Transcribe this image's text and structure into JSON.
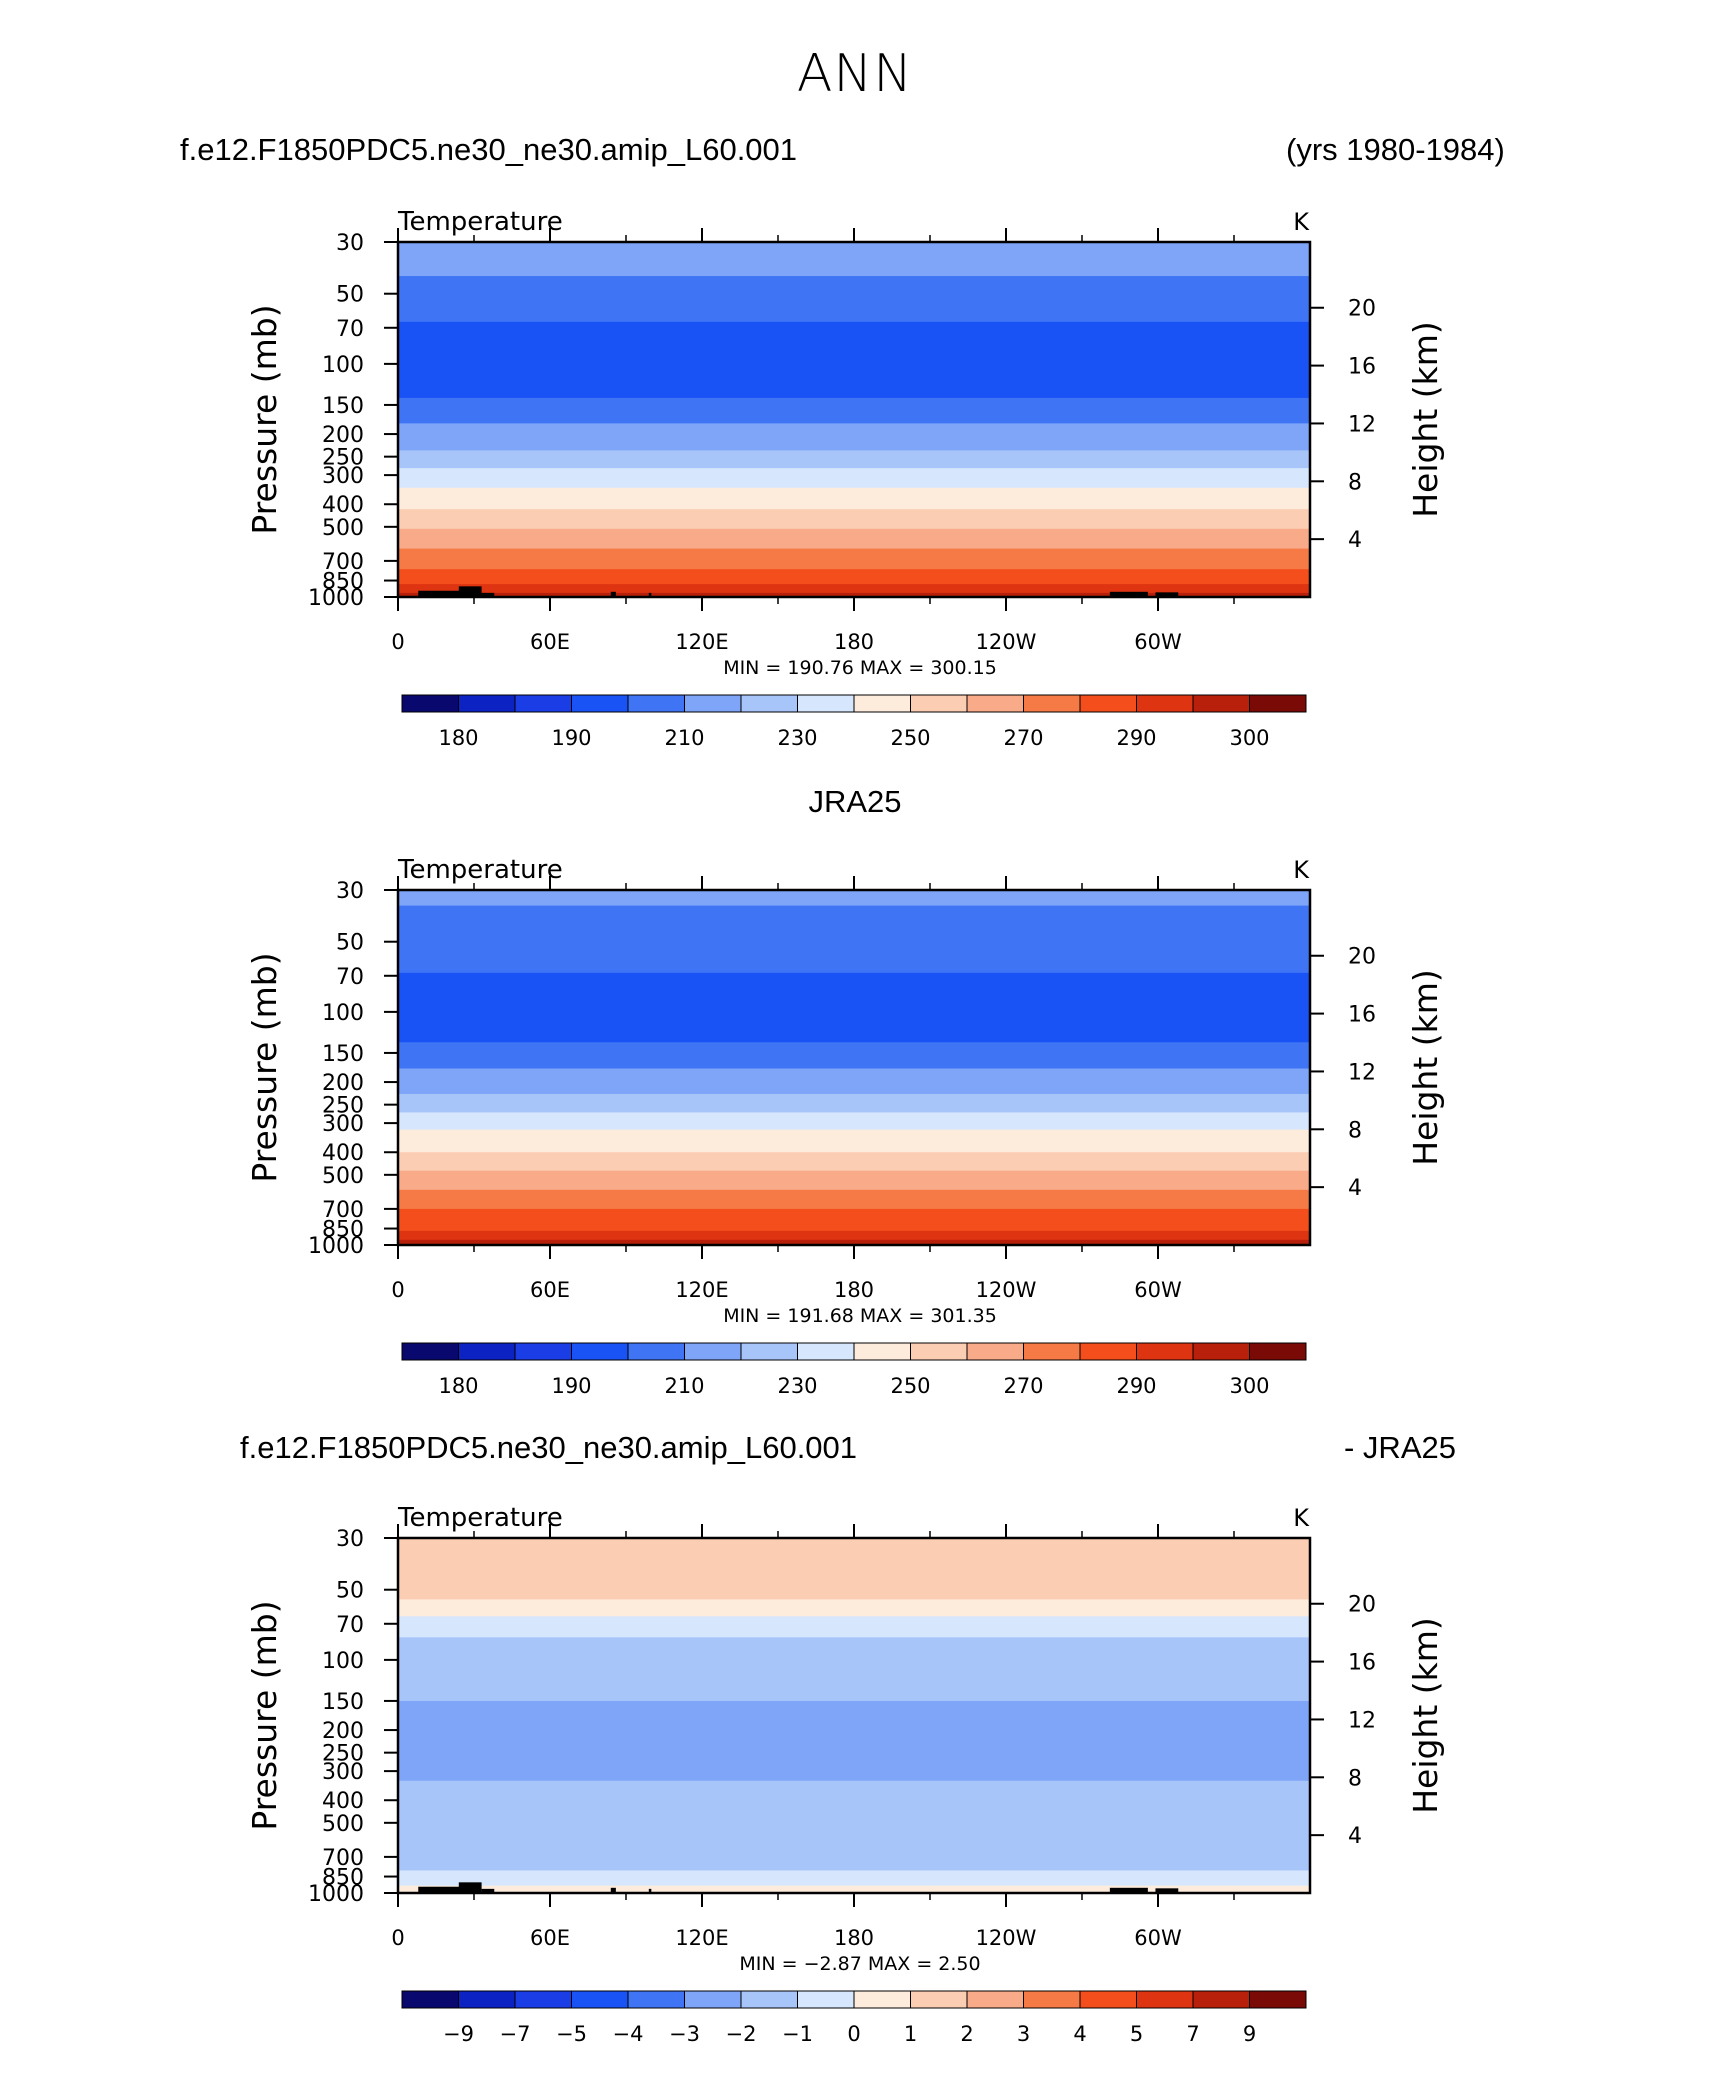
{
  "page_title": "ANN",
  "headers": {
    "top_left": "f.e12.F1850PDC5.ne30_ne30.amip_L60.001",
    "top_right": "(yrs 1980-1984)",
    "middle_center": "JRA25",
    "bottom_left": "f.e12.F1850PDC5.ne30_ne30.amip_L60.001",
    "bottom_right": "- JRA25"
  },
  "colors": {
    "abs_palette": [
      "#08086e",
      "#0d22c2",
      "#1a3de6",
      "#1a53f5",
      "#3f75f5",
      "#7fa5f8",
      "#a8c5fa",
      "#d6e7fd",
      "#fdecdb",
      "#fbcdb3",
      "#f8aa89",
      "#f57a45",
      "#f44e1c",
      "#df3412",
      "#b8200c",
      "#7a0a06"
    ],
    "diff_palette": [
      "#08086e",
      "#0d22c2",
      "#1a3de6",
      "#1a53f5",
      "#3f75f5",
      "#7fa5f8",
      "#a8c5fa",
      "#d6e7fd",
      "#fdecdb",
      "#fbcdb3",
      "#f8aa89",
      "#f57a45",
      "#f44e1c",
      "#df3412",
      "#b8200c",
      "#7a0a06"
    ],
    "topography": "#000000"
  },
  "chart_data": [
    {
      "type": "heatmap",
      "name": "model",
      "title": "Temperature",
      "units": "K",
      "xlabel": "",
      "ylabel": "Pressure  (mb)",
      "y2label": "Height  (km)",
      "x_tick_labels": [
        "0",
        "60E",
        "120E",
        "180",
        "120W",
        "60W"
      ],
      "xlim": [
        0,
        360
      ],
      "y_ticks_mb": [
        30,
        50,
        70,
        100,
        150,
        200,
        250,
        300,
        400,
        500,
        700,
        850,
        1000
      ],
      "y_log": true,
      "ylim_mb": [
        1000,
        30
      ],
      "y2_ticks_km": [
        4,
        8,
        12,
        16,
        20
      ],
      "min": 190.76,
      "max": 300.15,
      "min_max_text": "MIN =  190.76   MAX =  300.15",
      "colorbar_labels": [
        "180",
        "190",
        "210",
        "230",
        "250",
        "270",
        "290",
        "300"
      ],
      "levels": [
        {
          "p_top": 30,
          "p_bottom": 42,
          "color_index": 5
        },
        {
          "p_top": 42,
          "p_bottom": 66,
          "color_index": 4
        },
        {
          "p_top": 66,
          "p_bottom": 140,
          "color_index": 3
        },
        {
          "p_top": 140,
          "p_bottom": 180,
          "color_index": 4
        },
        {
          "p_top": 180,
          "p_bottom": 235,
          "color_index": 5
        },
        {
          "p_top": 235,
          "p_bottom": 280,
          "color_index": 6
        },
        {
          "p_top": 280,
          "p_bottom": 340,
          "color_index": 7
        },
        {
          "p_top": 340,
          "p_bottom": 420,
          "color_index": 8
        },
        {
          "p_top": 420,
          "p_bottom": 510,
          "color_index": 9
        },
        {
          "p_top": 510,
          "p_bottom": 620,
          "color_index": 10
        },
        {
          "p_top": 620,
          "p_bottom": 760,
          "color_index": 11
        },
        {
          "p_top": 760,
          "p_bottom": 880,
          "color_index": 12
        },
        {
          "p_top": 880,
          "p_bottom": 960,
          "color_index": 13
        },
        {
          "p_top": 960,
          "p_bottom": 1000,
          "color_index": 14
        }
      ],
      "topography": true
    },
    {
      "type": "heatmap",
      "name": "JRA25",
      "title": "Temperature",
      "units": "K",
      "xlabel": "",
      "ylabel": "Pressure  (mb)",
      "y2label": "Height  (km)",
      "x_tick_labels": [
        "0",
        "60E",
        "120E",
        "180",
        "120W",
        "60W"
      ],
      "xlim": [
        0,
        360
      ],
      "y_ticks_mb": [
        30,
        50,
        70,
        100,
        150,
        200,
        250,
        300,
        400,
        500,
        700,
        850,
        1000
      ],
      "y_log": true,
      "ylim_mb": [
        1000,
        30
      ],
      "y2_ticks_km": [
        4,
        8,
        12,
        16,
        20
      ],
      "min": 191.68,
      "max": 301.35,
      "min_max_text": "MIN =  191.68   MAX =  301.35",
      "colorbar_labels": [
        "180",
        "190",
        "210",
        "230",
        "250",
        "270",
        "290",
        "300"
      ],
      "levels": [
        {
          "p_top": 30,
          "p_bottom": 35,
          "color_index": 5
        },
        {
          "p_top": 35,
          "p_bottom": 68,
          "color_index": 4
        },
        {
          "p_top": 68,
          "p_bottom": 135,
          "color_index": 3
        },
        {
          "p_top": 135,
          "p_bottom": 175,
          "color_index": 4
        },
        {
          "p_top": 175,
          "p_bottom": 225,
          "color_index": 5
        },
        {
          "p_top": 225,
          "p_bottom": 270,
          "color_index": 6
        },
        {
          "p_top": 270,
          "p_bottom": 320,
          "color_index": 7
        },
        {
          "p_top": 320,
          "p_bottom": 400,
          "color_index": 8
        },
        {
          "p_top": 400,
          "p_bottom": 480,
          "color_index": 9
        },
        {
          "p_top": 480,
          "p_bottom": 580,
          "color_index": 10
        },
        {
          "p_top": 580,
          "p_bottom": 700,
          "color_index": 11
        },
        {
          "p_top": 700,
          "p_bottom": 870,
          "color_index": 12
        },
        {
          "p_top": 870,
          "p_bottom": 950,
          "color_index": 13
        },
        {
          "p_top": 950,
          "p_bottom": 1000,
          "color_index": 14
        }
      ],
      "topography": false
    },
    {
      "type": "heatmap",
      "name": "difference",
      "title": "Temperature",
      "units": "K",
      "xlabel": "",
      "ylabel": "Pressure  (mb)",
      "y2label": "Height  (km)",
      "x_tick_labels": [
        "0",
        "60E",
        "120E",
        "180",
        "120W",
        "60W"
      ],
      "xlim": [
        0,
        360
      ],
      "y_ticks_mb": [
        30,
        50,
        70,
        100,
        150,
        200,
        250,
        300,
        400,
        500,
        700,
        850,
        1000
      ],
      "y_log": true,
      "ylim_mb": [
        1000,
        30
      ],
      "y2_ticks_km": [
        4,
        8,
        12,
        16,
        20
      ],
      "min": -2.87,
      "max": 2.5,
      "min_max_text": "MIN =    −2.87   MAX =     2.50",
      "colorbar_labels": [
        "−9",
        "−7",
        "−5",
        "−4",
        "−3",
        "−2",
        "−1",
        "0",
        "1",
        "2",
        "3",
        "4",
        "5",
        "7",
        "9"
      ],
      "levels": [
        {
          "p_top": 30,
          "p_bottom": 55,
          "color_index": 9
        },
        {
          "p_top": 55,
          "p_bottom": 65,
          "color_index": 8
        },
        {
          "p_top": 65,
          "p_bottom": 80,
          "color_index": 7
        },
        {
          "p_top": 80,
          "p_bottom": 150,
          "color_index": 6
        },
        {
          "p_top": 150,
          "p_bottom": 330,
          "color_index": 5
        },
        {
          "p_top": 330,
          "p_bottom": 800,
          "color_index": 6
        },
        {
          "p_top": 800,
          "p_bottom": 930,
          "color_index": 7
        },
        {
          "p_top": 930,
          "p_bottom": 1000,
          "color_index": 8
        }
      ],
      "topography": true
    }
  ]
}
